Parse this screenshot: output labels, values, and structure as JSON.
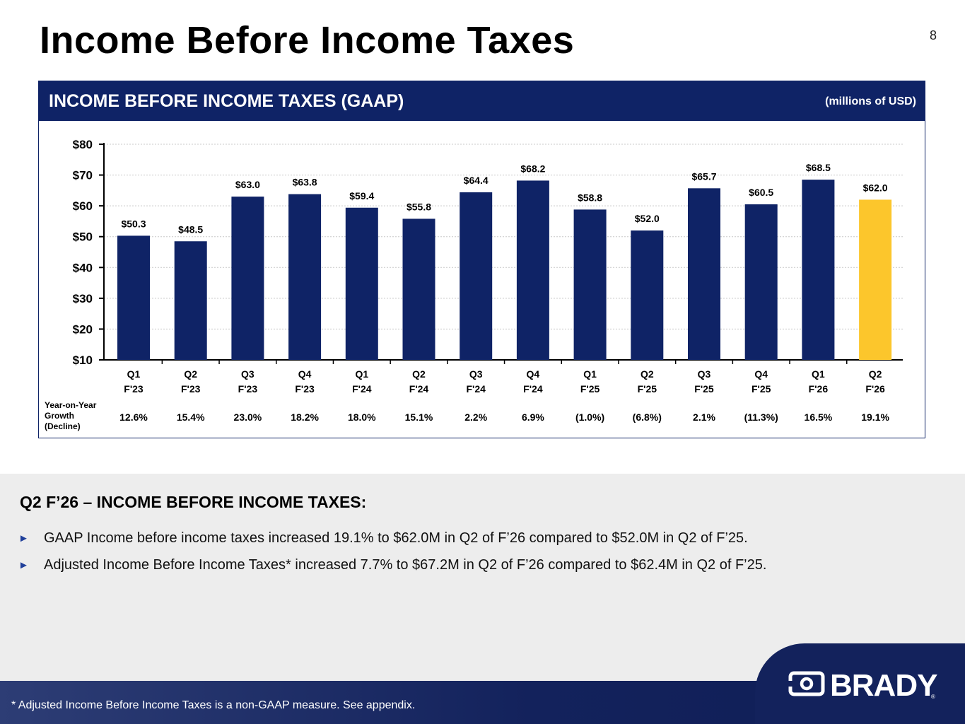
{
  "page": {
    "title": "Income Before Income Taxes",
    "number": "8"
  },
  "panel": {
    "title": "INCOME BEFORE INCOME TAXES (GAAP)",
    "units": "(millions of USD)",
    "growth_label_lines": [
      "Year-on-Year",
      "Growth",
      "(Decline)"
    ]
  },
  "chart_data": {
    "type": "bar",
    "categories": [
      [
        "Q1",
        "F'23"
      ],
      [
        "Q2",
        "F'23"
      ],
      [
        "Q3",
        "F'23"
      ],
      [
        "Q4",
        "F'23"
      ],
      [
        "Q1",
        "F'24"
      ],
      [
        "Q2",
        "F'24"
      ],
      [
        "Q3",
        "F'24"
      ],
      [
        "Q4",
        "F'24"
      ],
      [
        "Q1",
        "F'25"
      ],
      [
        "Q2",
        "F'25"
      ],
      [
        "Q3",
        "F'25"
      ],
      [
        "Q4",
        "F'25"
      ],
      [
        "Q1",
        "F'26"
      ],
      [
        "Q2",
        "F'26"
      ]
    ],
    "values": [
      50.3,
      48.5,
      63.0,
      63.8,
      59.4,
      55.8,
      64.4,
      68.2,
      58.8,
      52.0,
      65.7,
      60.5,
      68.5,
      62.0
    ],
    "value_labels": [
      "$50.3",
      "$48.5",
      "$63.0",
      "$63.8",
      "$59.4",
      "$55.8",
      "$64.4",
      "$68.2",
      "$58.8",
      "$52.0",
      "$65.7",
      "$60.5",
      "$68.5",
      "$62.0"
    ],
    "growth_labels": [
      "12.6%",
      "15.4%",
      "23.0%",
      "18.2%",
      "18.0%",
      "15.1%",
      "2.2%",
      "6.9%",
      "(1.0%)",
      "(6.8%)",
      "2.1%",
      "(11.3%)",
      "16.5%",
      "19.1%"
    ],
    "ylim": [
      10,
      80
    ],
    "yticks": [
      10,
      20,
      30,
      40,
      50,
      60,
      70,
      80
    ],
    "ytick_labels": [
      "$10",
      "$20",
      "$30",
      "$40",
      "$50",
      "$60",
      "$70",
      "$80"
    ],
    "grid": true,
    "bar_color": "#0f2366",
    "highlight_index": 13,
    "highlight_color": "#fcc62c"
  },
  "summary": {
    "heading": "Q2 F’26 – INCOME BEFORE INCOME TAXES:",
    "bullets": [
      "GAAP Income before income taxes increased 19.1% to $62.0M in Q2 of F’26 compared to $52.0M in Q2 of F’25.",
      "Adjusted Income Before Income Taxes* increased 7.7% to $67.2M in Q2 of F’26 compared to $62.4M in Q2 of F’25."
    ]
  },
  "footer": {
    "note": "* Adjusted Income Before Income Taxes is a non-GAAP measure.  See appendix.",
    "logo_text": "BRADY",
    "logo_mark": "®"
  },
  "icons": {
    "bullet": "triangle-right-icon",
    "logo": "brady-logo"
  }
}
